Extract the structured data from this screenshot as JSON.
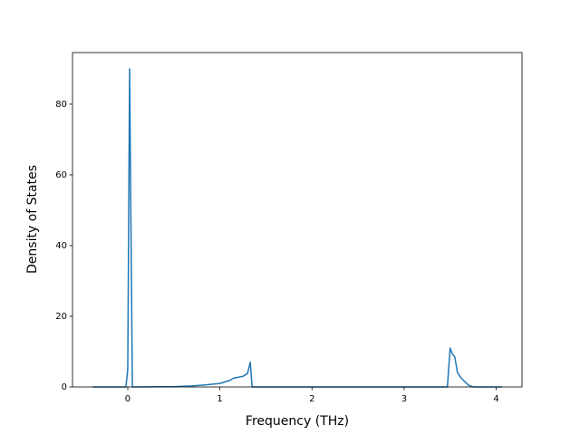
{
  "chart_data": {
    "type": "line",
    "xlabel": "Frequency (THz)",
    "ylabel": "Density of States",
    "x": [
      -0.38,
      -0.2,
      -0.02,
      0.0,
      0.02,
      0.05,
      0.1,
      0.3,
      0.5,
      0.7,
      0.85,
      1.0,
      1.1,
      1.15,
      1.25,
      1.3,
      1.33,
      1.35,
      2.0,
      3.0,
      3.47,
      3.5,
      3.52,
      3.55,
      3.58,
      3.62,
      3.66,
      3.7,
      3.75,
      4.06
    ],
    "series": [
      {
        "color": "#1f77b4",
        "values": [
          0,
          0,
          0,
          5,
          90,
          0,
          0,
          0.05,
          0.1,
          0.3,
          0.6,
          1.0,
          1.8,
          2.5,
          3.0,
          3.8,
          7,
          0,
          0,
          0,
          0,
          11,
          9.5,
          8.5,
          4,
          2.5,
          1.5,
          0.5,
          0,
          0
        ]
      }
    ],
    "xlim": [
      -0.6,
      4.28
    ],
    "ylim": [
      0,
      94.6
    ],
    "xticks": [
      0,
      1,
      2,
      3,
      4
    ],
    "yticks": [
      0,
      20,
      40,
      60,
      80
    ]
  }
}
